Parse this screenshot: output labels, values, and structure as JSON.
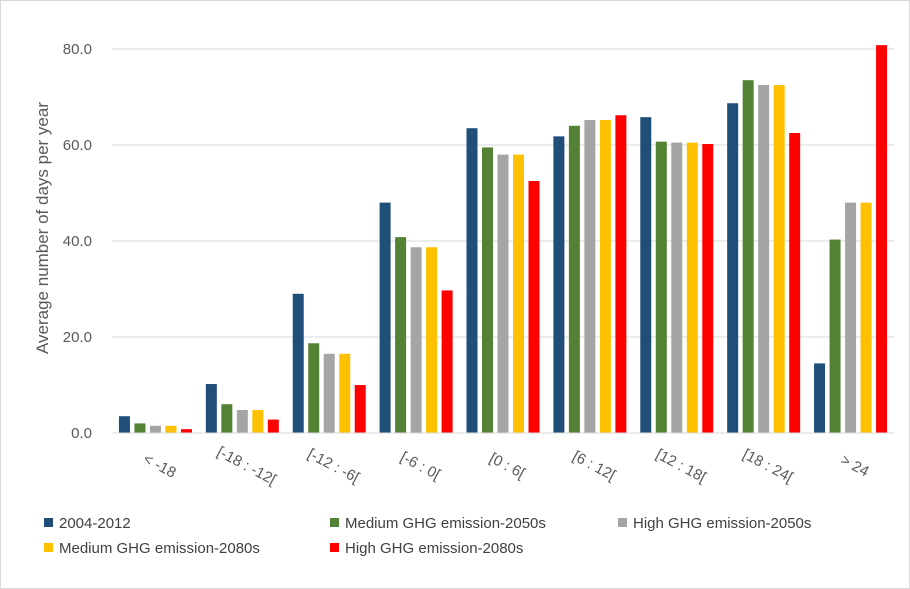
{
  "chart_data": {
    "type": "bar",
    "title": "",
    "xlabel": "",
    "ylabel": "Average number of days per year",
    "ylim": [
      0,
      80
    ],
    "yticks": [
      "0.0",
      "20.0",
      "40.0",
      "60.0",
      "80.0"
    ],
    "grid": true,
    "legend_position": "bottom",
    "categories": [
      "< -18",
      "[-18 : -12[",
      "[-12 : -6[",
      "[-6 : 0[",
      "[0 : 6[",
      "[6 : 12[",
      "[12 : 18[",
      "[18 : 24[",
      "> 24"
    ],
    "series": [
      {
        "name": "2004-2012",
        "color": "#1f4e79",
        "values": [
          3.5,
          10.2,
          29.0,
          48.0,
          63.5,
          61.8,
          65.8,
          68.7,
          14.5
        ]
      },
      {
        "name": "Medium GHG emission-2050s",
        "color": "#548235",
        "values": [
          2.0,
          6.0,
          18.7,
          40.8,
          59.5,
          64.0,
          60.7,
          73.5,
          40.3
        ]
      },
      {
        "name": "High GHG emission-2050s",
        "color": "#a5a5a5",
        "values": [
          1.5,
          4.8,
          16.5,
          38.7,
          58.0,
          65.2,
          60.5,
          72.5,
          48.0
        ]
      },
      {
        "name": "Medium GHG emission-2080s",
        "color": "#ffc000",
        "values": [
          1.5,
          4.8,
          16.5,
          38.7,
          58.0,
          65.2,
          60.5,
          72.5,
          48.0
        ]
      },
      {
        "name": "High GHG emission-2080s",
        "color": "#ff0000",
        "values": [
          0.8,
          2.8,
          10.0,
          29.7,
          52.5,
          66.2,
          60.2,
          62.5,
          80.8
        ]
      }
    ]
  }
}
